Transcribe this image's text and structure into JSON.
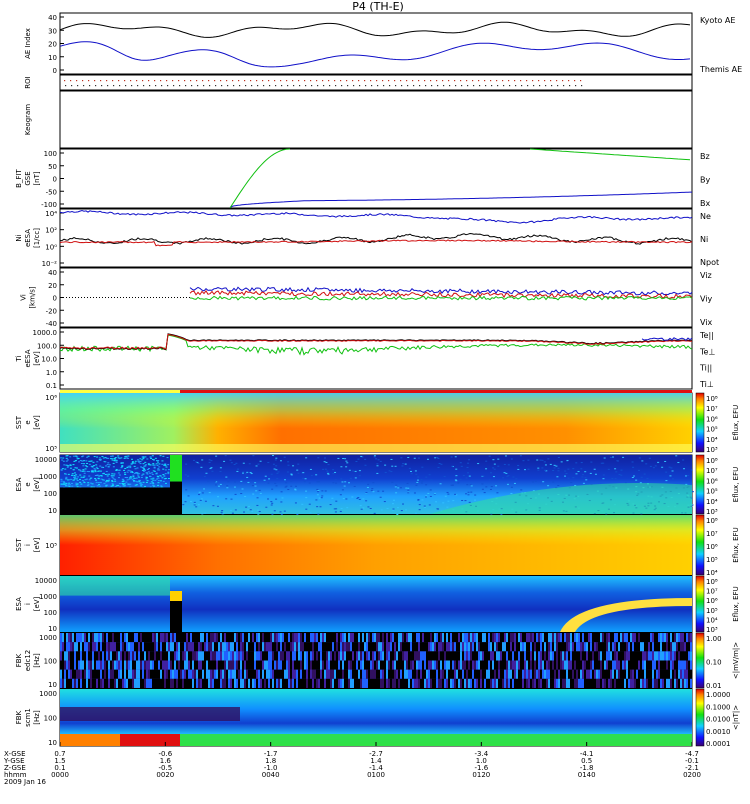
{
  "title": "P4 (TH-E)",
  "colors": {
    "black": "#000000",
    "blue": "#1010c8",
    "red": "#d01010",
    "green": "#10c010"
  },
  "panels": [
    {
      "id": "ae",
      "ylabel": [
        "AE Index"
      ],
      "ticks": [
        "40",
        "30",
        "20",
        "10",
        "0"
      ],
      "legend": [
        {
          "text": "Kyoto AE",
          "color": "blue"
        },
        {
          "text": "Themis AE",
          "color": "black"
        }
      ]
    },
    {
      "id": "roi",
      "ylabel": [
        "ROI"
      ],
      "ticks": [],
      "legend": []
    },
    {
      "id": "keogram",
      "ylabel": [
        "Keogram"
      ],
      "ticks": [],
      "legend": []
    },
    {
      "id": "bfit",
      "ylabel": [
        "B_FIT",
        "GSE",
        "[nT]"
      ],
      "ticks": [
        "100",
        "50",
        "0",
        "-50",
        "-100"
      ],
      "legend": [
        {
          "text": "Bz",
          "color": "red"
        },
        {
          "text": "By",
          "color": "green"
        },
        {
          "text": "Bx",
          "color": "blue"
        }
      ]
    },
    {
      "id": "ni",
      "ylabel": [
        "Ni",
        "eESA",
        "[1/cc]"
      ],
      "ticks": [
        "10⁴",
        "10²",
        "10⁰",
        "10⁻²"
      ],
      "legend": [
        {
          "text": "Ne",
          "color": "red"
        },
        {
          "text": "Ni",
          "color": "black"
        },
        {
          "text": "Npot",
          "color": "blue"
        }
      ]
    },
    {
      "id": "vi",
      "ylabel": [
        "Vi",
        "[km/s]"
      ],
      "ticks": [
        "40",
        "20",
        "0",
        "-20",
        "-40"
      ],
      "legend": [
        {
          "text": "Viz",
          "color": "red"
        },
        {
          "text": "Viy",
          "color": "green"
        },
        {
          "text": "Vix",
          "color": "blue"
        }
      ]
    },
    {
      "id": "ti",
      "ylabel": [
        "Ti",
        "eESA",
        "[eV]"
      ],
      "ticks": [
        "1000.0",
        "100.0",
        "10.0",
        "1.0",
        "0.1"
      ],
      "legend": [
        {
          "text": "Te||",
          "color": "black"
        },
        {
          "text": "Te⊥",
          "color": "red"
        },
        {
          "text": "Ti||",
          "color": "green"
        },
        {
          "text": "Ti⊥",
          "color": "blue"
        }
      ]
    },
    {
      "id": "sst_e",
      "ylabel": [
        "SST",
        "e",
        "[eV]"
      ],
      "ticks": [
        "10⁶",
        "10⁵"
      ],
      "cbar": [
        "10⁸",
        "10⁷",
        "10⁶",
        "10⁵",
        "10⁴",
        "10³"
      ],
      "cbar_title": "Eflux, EFU"
    },
    {
      "id": "esa_e",
      "ylabel": [
        "ESA",
        "e",
        "[eV]"
      ],
      "ticks": [
        "10000",
        "1000",
        "100",
        "10"
      ],
      "cbar": [
        "10⁸",
        "10⁷",
        "10⁶",
        "10⁵",
        "10⁴",
        "10³"
      ],
      "cbar_title": "Eflux, EFU"
    },
    {
      "id": "sst_i",
      "ylabel": [
        "SST",
        "i",
        "[eV]"
      ],
      "ticks": [
        "10⁵"
      ],
      "cbar": [
        "10⁸",
        "10⁷",
        "10⁶",
        "10⁵",
        "10⁴"
      ],
      "cbar_title": "Eflux, EFU"
    },
    {
      "id": "esa_i",
      "ylabel": [
        "ESA",
        "i",
        "[eV]"
      ],
      "ticks": [
        "10000",
        "1000",
        "100",
        "10"
      ],
      "cbar": [
        "10⁸",
        "10⁷",
        "10⁶",
        "10⁵",
        "10⁴",
        "10³"
      ],
      "cbar_title": "Eflux, EFU"
    },
    {
      "id": "fbk_edc",
      "ylabel": [
        "FBK",
        "edc12",
        "[Hz]"
      ],
      "ticks": [
        "1000",
        "100",
        "10"
      ],
      "cbar": [
        "1.00",
        "0.10",
        "0.01"
      ],
      "cbar_title": "<|mV/m|>"
    },
    {
      "id": "fbk_scm",
      "ylabel": [
        "FBK",
        "scm1",
        "[Hz]"
      ],
      "ticks": [
        "1000",
        "100",
        "10"
      ],
      "cbar": [
        "1.0000",
        "0.1000",
        "0.0100",
        "0.0010",
        "0.0001"
      ],
      "cbar_title": "<|nT|>"
    }
  ],
  "xaxis": {
    "row_labels": [
      "X-GSE",
      "Y-GSE",
      "Z-GSE",
      "hhmm",
      "2009 Jan 16"
    ],
    "ticks": [
      {
        "vals": [
          "0.7",
          "1.5",
          "0.1",
          "0000"
        ]
      },
      {
        "vals": [
          "-0.6",
          "1.6",
          "-0.5",
          "0020"
        ]
      },
      {
        "vals": [
          "-1.7",
          "1.8",
          "-1.0",
          "0040"
        ]
      },
      {
        "vals": [
          "-2.7",
          "1.4",
          "-1.4",
          "0100"
        ]
      },
      {
        "vals": [
          "-3.4",
          "1.0",
          "-1.6",
          "0120"
        ]
      },
      {
        "vals": [
          "-4.1",
          "0.5",
          "-1.8",
          "0140"
        ]
      },
      {
        "vals": [
          "-4.7",
          "-0.1",
          "-2.1",
          "0200"
        ]
      }
    ]
  },
  "chart_data": {
    "type": "line",
    "title": "P4 (TH-E)",
    "x_label": "hhmm",
    "x": [
      "0000",
      "0020",
      "0040",
      "0100",
      "0120",
      "0140",
      "0200"
    ],
    "series": [
      {
        "name": "Themis AE",
        "values": [
          30,
          30,
          25,
          30,
          30,
          28,
          22
        ]
      },
      {
        "name": "Kyoto AE",
        "values": [
          22,
          8,
          10,
          15,
          12,
          10,
          15
        ]
      },
      {
        "name": "Bx",
        "values": [
          -90,
          -95,
          -75,
          -70,
          -68,
          -62,
          -48
        ]
      },
      {
        "name": "By",
        "values": [
          null,
          null,
          100,
          null,
          null,
          95,
          65
        ]
      },
      {
        "name": "Ti||",
        "values": [
          60,
          80,
          40,
          30,
          30,
          40,
          60
        ]
      },
      {
        "name": "Te||",
        "values": [
          60,
          120,
          300,
          250,
          220,
          100,
          200
        ]
      }
    ]
  }
}
